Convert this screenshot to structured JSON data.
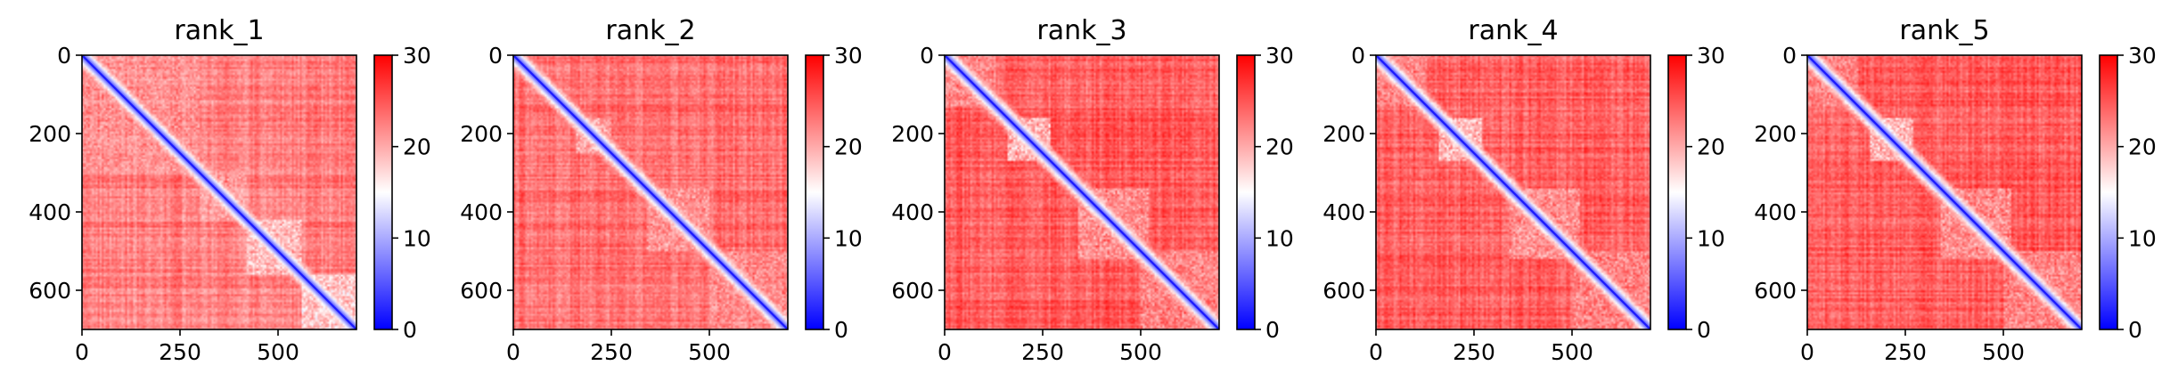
{
  "chart_data": [
    {
      "type": "heatmap",
      "title": "rank_1",
      "x_ticks": [
        "0",
        "250",
        "500"
      ],
      "x_tick_values": [
        0,
        250,
        500
      ],
      "y_ticks": [
        "0",
        "200",
        "400",
        "600"
      ],
      "y_tick_values": [
        0,
        200,
        400,
        600
      ],
      "xlim": [
        0,
        700
      ],
      "ylim": [
        700,
        0
      ],
      "colorbar": {
        "ticks": [
          "0",
          "10",
          "20",
          "30"
        ],
        "tick_values": [
          0,
          10,
          20,
          30
        ],
        "range": [
          0,
          30
        ]
      },
      "colormap": [
        "#0000ff",
        "#ffffff",
        "#ff0000"
      ],
      "low_error_blocks": [
        [
          0,
          300,
          18
        ],
        [
          300,
          420,
          17
        ],
        [
          420,
          560,
          14
        ],
        [
          560,
          700,
          13
        ]
      ],
      "background_value": 27
    },
    {
      "type": "heatmap",
      "title": "rank_2",
      "x_ticks": [
        "0",
        "250",
        "500"
      ],
      "x_tick_values": [
        0,
        250,
        500
      ],
      "y_ticks": [
        "0",
        "200",
        "400",
        "600"
      ],
      "y_tick_values": [
        0,
        200,
        400,
        600
      ],
      "xlim": [
        0,
        700
      ],
      "ylim": [
        700,
        0
      ],
      "colorbar": {
        "ticks": [
          "0",
          "10",
          "20",
          "30"
        ],
        "tick_values": [
          0,
          10,
          20,
          30
        ],
        "range": [
          0,
          30
        ]
      },
      "colormap": [
        "#0000ff",
        "#ffffff",
        "#ff0000"
      ],
      "low_error_blocks": [
        [
          160,
          250,
          16
        ],
        [
          340,
          500,
          17
        ],
        [
          500,
          700,
          18
        ]
      ],
      "background_value": 28
    },
    {
      "type": "heatmap",
      "title": "rank_3",
      "x_ticks": [
        "0",
        "250",
        "500"
      ],
      "x_tick_values": [
        0,
        250,
        500
      ],
      "y_ticks": [
        "0",
        "200",
        "400",
        "600"
      ],
      "y_tick_values": [
        0,
        200,
        400,
        600
      ],
      "xlim": [
        0,
        700
      ],
      "ylim": [
        700,
        0
      ],
      "colorbar": {
        "ticks": [
          "0",
          "10",
          "20",
          "30"
        ],
        "tick_values": [
          0,
          10,
          20,
          30
        ],
        "range": [
          0,
          30
        ]
      },
      "colormap": [
        "#0000ff",
        "#ffffff",
        "#ff0000"
      ],
      "low_error_blocks": [
        [
          0,
          130,
          18
        ],
        [
          160,
          270,
          14
        ],
        [
          340,
          520,
          17
        ],
        [
          500,
          700,
          18
        ]
      ],
      "background_value": 29
    },
    {
      "type": "heatmap",
      "title": "rank_4",
      "x_ticks": [
        "0",
        "250",
        "500"
      ],
      "x_tick_values": [
        0,
        250,
        500
      ],
      "y_ticks": [
        "0",
        "200",
        "400",
        "600"
      ],
      "y_tick_values": [
        0,
        200,
        400,
        600
      ],
      "xlim": [
        0,
        700
      ],
      "ylim": [
        700,
        0
      ],
      "colorbar": {
        "ticks": [
          "0",
          "10",
          "20",
          "30"
        ],
        "tick_values": [
          0,
          10,
          20,
          30
        ],
        "range": [
          0,
          30
        ]
      },
      "colormap": [
        "#0000ff",
        "#ffffff",
        "#ff0000"
      ],
      "low_error_blocks": [
        [
          0,
          130,
          18
        ],
        [
          160,
          270,
          14
        ],
        [
          340,
          520,
          17
        ],
        [
          500,
          700,
          18
        ]
      ],
      "background_value": 29
    },
    {
      "type": "heatmap",
      "title": "rank_5",
      "x_ticks": [
        "0",
        "250",
        "500"
      ],
      "x_tick_values": [
        0,
        250,
        500
      ],
      "y_ticks": [
        "0",
        "200",
        "400",
        "600"
      ],
      "y_tick_values": [
        0,
        200,
        400,
        600
      ],
      "xlim": [
        0,
        700
      ],
      "ylim": [
        700,
        0
      ],
      "colorbar": {
        "ticks": [
          "0",
          "10",
          "20",
          "30"
        ],
        "tick_values": [
          0,
          10,
          20,
          30
        ],
        "range": [
          0,
          30
        ]
      },
      "colormap": [
        "#0000ff",
        "#ffffff",
        "#ff0000"
      ],
      "low_error_blocks": [
        [
          0,
          130,
          18
        ],
        [
          160,
          270,
          14
        ],
        [
          340,
          520,
          17
        ],
        [
          500,
          700,
          18
        ]
      ],
      "background_value": 29
    }
  ]
}
